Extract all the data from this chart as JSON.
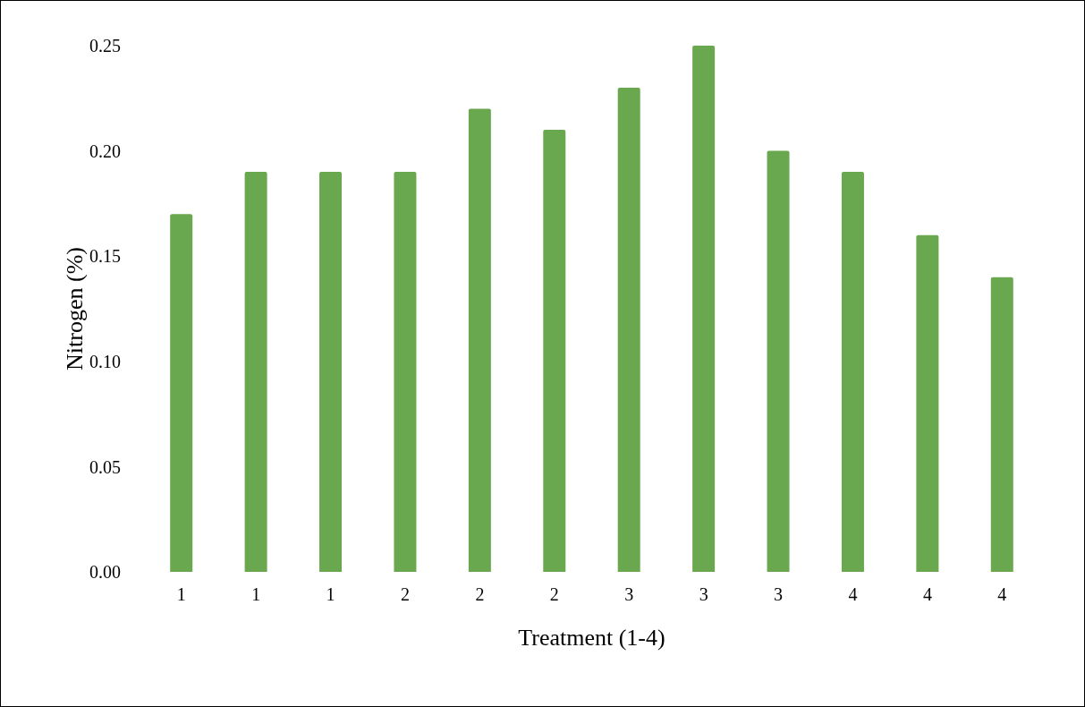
{
  "chart_data": {
    "type": "bar",
    "xlabel": "Treatment (1-4)",
    "ylabel": "Nitrogen (%)",
    "categories": [
      "1",
      "1",
      "1",
      "2",
      "2",
      "2",
      "3",
      "3",
      "3",
      "4",
      "4",
      "4"
    ],
    "values": [
      0.17,
      0.19,
      0.19,
      0.19,
      0.22,
      0.21,
      0.23,
      0.25,
      0.2,
      0.19,
      0.16,
      0.14
    ],
    "color": "#6aa84f",
    "ylim": [
      0,
      0.25
    ],
    "yticks": [
      {
        "value": 0,
        "label": "0.00"
      },
      {
        "value": 0.05,
        "label": "0.05"
      },
      {
        "value": 0.1,
        "label": "0.10"
      },
      {
        "value": 0.15,
        "label": "0.15"
      },
      {
        "value": 0.2,
        "label": "0.20"
      },
      {
        "value": 0.25,
        "label": "0.25"
      }
    ],
    "grid": false,
    "legend": false
  }
}
